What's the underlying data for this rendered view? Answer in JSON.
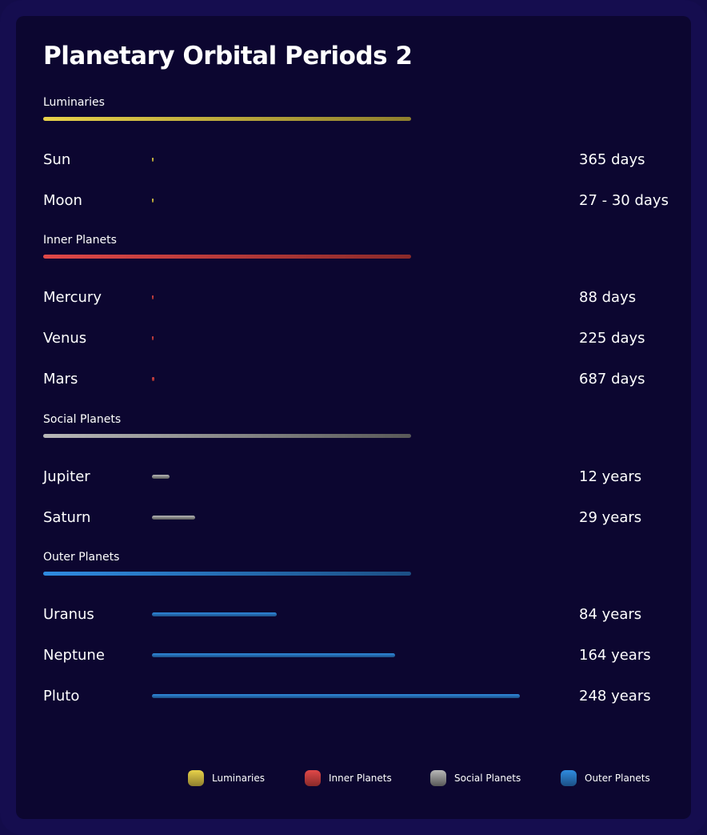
{
  "chart_data": {
    "type": "bar",
    "title": "Planetary Orbital Periods 2",
    "unit": "years",
    "groups": [
      {
        "key": "lum",
        "name": "Luminaries",
        "color": "#e8d24a",
        "color_end": "#8f7f2e"
      },
      {
        "key": "inner",
        "name": "Inner Planets",
        "color": "#e04848",
        "color_end": "#8a2a2a"
      },
      {
        "key": "social",
        "name": "Social Planets",
        "color": "#b8b8b8",
        "color_end": "#585858"
      },
      {
        "key": "outer",
        "name": "Outer Planets",
        "color": "#2f8be0",
        "color_end": "#1c4f85"
      }
    ],
    "rows": [
      {
        "name": "Sun",
        "group": "lum",
        "value": 1.0,
        "label": "365 days"
      },
      {
        "name": "Moon",
        "group": "lum",
        "value": 0.08,
        "label": "27 - 30 days"
      },
      {
        "name": "Mercury",
        "group": "inner",
        "value": 0.24,
        "label": "88 days"
      },
      {
        "name": "Venus",
        "group": "inner",
        "value": 0.62,
        "label": "225 days"
      },
      {
        "name": "Mars",
        "group": "inner",
        "value": 1.88,
        "label": "687 days"
      },
      {
        "name": "Jupiter",
        "group": "social",
        "value": 12,
        "label": "12 years"
      },
      {
        "name": "Saturn",
        "group": "social",
        "value": 29,
        "label": "29 years"
      },
      {
        "name": "Uranus",
        "group": "outer",
        "value": 84,
        "label": "84 years"
      },
      {
        "name": "Neptune",
        "group": "outer",
        "value": 164,
        "label": "164 years"
      },
      {
        "name": "Pluto",
        "group": "outer",
        "value": 248,
        "label": "248 years"
      }
    ],
    "xlim": [
      0,
      248
    ],
    "legend": "bottom"
  }
}
